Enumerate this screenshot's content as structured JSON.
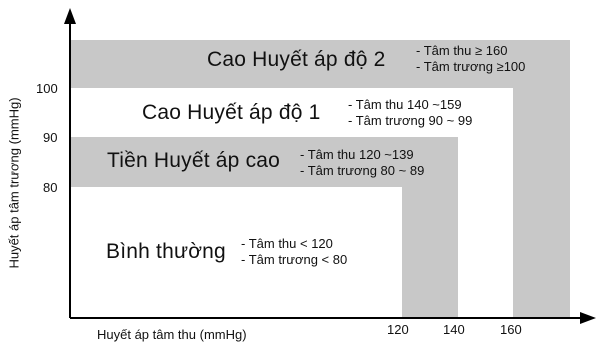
{
  "axes": {
    "x_label": "Huyết áp tâm thu (mmHg)",
    "y_label": "Huyết áp tâm trương (mmHg)",
    "x_ticks": [
      "120",
      "140",
      "160"
    ],
    "y_ticks": [
      "80",
      "90",
      "100"
    ]
  },
  "zones": [
    {
      "title": "Cao Huyết áp độ 2",
      "lines": [
        "- Tâm thu ≥ 160",
        "- Tâm trương ≥100"
      ],
      "fill": "#c8c8c8"
    },
    {
      "title": "Cao Huyết áp độ  1",
      "lines": [
        "- Tâm thu 140 ~159",
        "- Tâm trương 90 ~ 99"
      ],
      "fill": "#ffffff"
    },
    {
      "title": "Tiền Huyết áp cao",
      "lines": [
        "- Tâm thu 120 ~139",
        "- Tâm trương 80 ~ 89"
      ],
      "fill": "#c8c8c8"
    },
    {
      "title": "Bình thường",
      "lines": [
        "- Tâm thu < 120",
        "- Tâm trương < 80"
      ],
      "fill": "#ffffff"
    }
  ]
}
